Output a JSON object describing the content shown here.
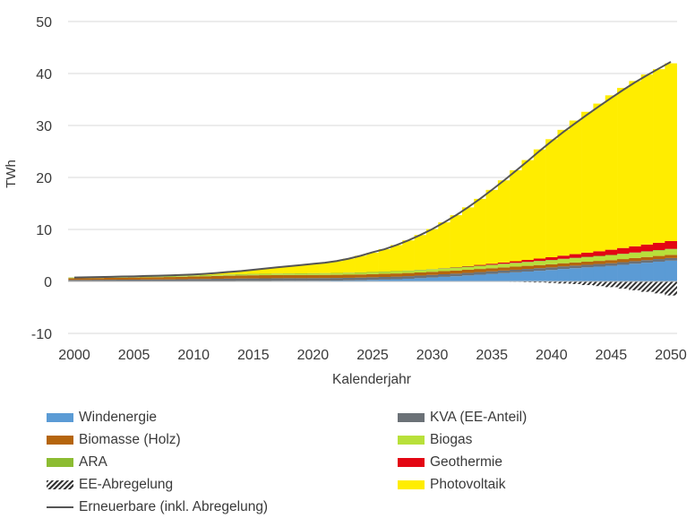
{
  "chart_data": {
    "type": "bar",
    "stacked": true,
    "xlabel": "Kalenderjahr",
    "ylabel": "TWh",
    "ylim": [
      -10,
      50
    ],
    "yticks": [
      -10,
      0,
      10,
      20,
      30,
      40,
      50
    ],
    "xticks": [
      2000,
      2005,
      2010,
      2015,
      2020,
      2025,
      2030,
      2035,
      2040,
      2045,
      2050
    ],
    "grid": "horizontal",
    "legend_position": "bottom",
    "x": [
      2000,
      2001,
      2002,
      2003,
      2004,
      2005,
      2006,
      2007,
      2008,
      2009,
      2010,
      2011,
      2012,
      2013,
      2014,
      2015,
      2016,
      2017,
      2018,
      2019,
      2020,
      2021,
      2022,
      2023,
      2024,
      2025,
      2026,
      2027,
      2028,
      2029,
      2030,
      2031,
      2032,
      2033,
      2034,
      2035,
      2036,
      2037,
      2038,
      2039,
      2040,
      2041,
      2042,
      2043,
      2044,
      2045,
      2046,
      2047,
      2048,
      2049,
      2050
    ],
    "series": [
      {
        "name": "Windenergie",
        "color": "#5b9bd5",
        "values": [
          0,
          0,
          0,
          0,
          0,
          0,
          0,
          0,
          0,
          0.02,
          0.04,
          0.05,
          0.06,
          0.08,
          0.1,
          0.1,
          0.1,
          0.12,
          0.13,
          0.13,
          0.14,
          0.15,
          0.17,
          0.2,
          0.24,
          0.3,
          0.36,
          0.43,
          0.52,
          0.63,
          0.75,
          0.88,
          1.0,
          1.15,
          1.3,
          1.45,
          1.6,
          1.75,
          1.9,
          2.05,
          2.2,
          2.4,
          2.55,
          2.7,
          2.85,
          3.0,
          3.2,
          3.4,
          3.6,
          3.8,
          4.0
        ]
      },
      {
        "name": "KVA (EE-Anteil)",
        "color": "#6b7177",
        "values": [
          0.3,
          0.3,
          0.32,
          0.33,
          0.34,
          0.35,
          0.37,
          0.38,
          0.39,
          0.4,
          0.42,
          0.43,
          0.45,
          0.46,
          0.47,
          0.48,
          0.5,
          0.5,
          0.5,
          0.5,
          0.5,
          0.5,
          0.5,
          0.5,
          0.5,
          0.5,
          0.5,
          0.5,
          0.5,
          0.5,
          0.5,
          0.5,
          0.5,
          0.5,
          0.5,
          0.5,
          0.5,
          0.5,
          0.5,
          0.5,
          0.5,
          0.5,
          0.5,
          0.5,
          0.5,
          0.5,
          0.5,
          0.5,
          0.5,
          0.5,
          0.5
        ]
      },
      {
        "name": "Biomasse (Holz)",
        "color": "#b5650d",
        "values": [
          0.3,
          0.32,
          0.34,
          0.36,
          0.38,
          0.4,
          0.42,
          0.44,
          0.46,
          0.48,
          0.5,
          0.52,
          0.54,
          0.56,
          0.58,
          0.6,
          0.6,
          0.6,
          0.6,
          0.6,
          0.6,
          0.6,
          0.6,
          0.6,
          0.6,
          0.6,
          0.6,
          0.6,
          0.6,
          0.6,
          0.6,
          0.6,
          0.6,
          0.6,
          0.6,
          0.6,
          0.6,
          0.6,
          0.6,
          0.6,
          0.6,
          0.6,
          0.6,
          0.6,
          0.6,
          0.6,
          0.6,
          0.6,
          0.6,
          0.6,
          0.6
        ]
      },
      {
        "name": "Biogas",
        "color": "#b8e03a",
        "values": [
          0.05,
          0.05,
          0.06,
          0.06,
          0.07,
          0.07,
          0.08,
          0.08,
          0.09,
          0.1,
          0.1,
          0.12,
          0.13,
          0.14,
          0.15,
          0.17,
          0.18,
          0.2,
          0.21,
          0.22,
          0.24,
          0.25,
          0.26,
          0.28,
          0.3,
          0.32,
          0.34,
          0.36,
          0.38,
          0.4,
          0.42,
          0.45,
          0.48,
          0.5,
          0.53,
          0.56,
          0.6,
          0.63,
          0.66,
          0.7,
          0.73,
          0.76,
          0.8,
          0.83,
          0.86,
          0.9,
          0.93,
          0.96,
          1.0,
          1.03,
          1.06
        ]
      },
      {
        "name": "ARA",
        "color": "#8cbc32",
        "values": [
          0.1,
          0.1,
          0.1,
          0.1,
          0.1,
          0.1,
          0.1,
          0.1,
          0.1,
          0.1,
          0.1,
          0.1,
          0.1,
          0.1,
          0.1,
          0.1,
          0.1,
          0.1,
          0.1,
          0.1,
          0.1,
          0.1,
          0.1,
          0.1,
          0.1,
          0.1,
          0.1,
          0.1,
          0.1,
          0.1,
          0.1,
          0.1,
          0.1,
          0.1,
          0.1,
          0.1,
          0.1,
          0.1,
          0.1,
          0.1,
          0.1,
          0.1,
          0.1,
          0.1,
          0.1,
          0.1,
          0.1,
          0.1,
          0.1,
          0.1,
          0.1
        ]
      },
      {
        "name": "Geothermie",
        "color": "#e30613",
        "values": [
          0,
          0,
          0,
          0,
          0,
          0,
          0,
          0,
          0,
          0,
          0,
          0,
          0,
          0,
          0,
          0,
          0,
          0,
          0,
          0,
          0,
          0,
          0,
          0,
          0,
          0,
          0,
          0,
          0,
          0,
          0,
          0.03,
          0.06,
          0.1,
          0.15,
          0.2,
          0.25,
          0.3,
          0.38,
          0.45,
          0.53,
          0.6,
          0.7,
          0.8,
          0.9,
          1.0,
          1.1,
          1.2,
          1.3,
          1.4,
          1.5
        ]
      },
      {
        "name": "Photovoltaik",
        "color": "#ffed00",
        "values": [
          0.01,
          0.02,
          0.03,
          0.04,
          0.05,
          0.06,
          0.08,
          0.1,
          0.12,
          0.14,
          0.18,
          0.25,
          0.35,
          0.5,
          0.6,
          0.8,
          1.0,
          1.2,
          1.4,
          1.6,
          1.8,
          2.0,
          2.3,
          2.7,
          3.2,
          3.7,
          4.3,
          5.0,
          5.8,
          6.7,
          7.7,
          8.8,
          10.0,
          11.3,
          12.7,
          14.2,
          15.8,
          17.5,
          19.2,
          21.0,
          22.7,
          24.2,
          25.7,
          27.1,
          28.4,
          29.7,
          30.8,
          31.8,
          32.7,
          33.4,
          34.2
        ]
      },
      {
        "name": "EE-Abregelung",
        "color": "#333333",
        "pattern": "hatch",
        "values": [
          0,
          0,
          0,
          0,
          0,
          0,
          0,
          0,
          0,
          0,
          0,
          0,
          0,
          0,
          0,
          0,
          0,
          0,
          0,
          0,
          0,
          0,
          0,
          0,
          0,
          0,
          0,
          0,
          0,
          0,
          0,
          0,
          0,
          0,
          0,
          0,
          -0.05,
          -0.1,
          -0.15,
          -0.2,
          -0.3,
          -0.4,
          -0.5,
          -0.7,
          -0.9,
          -1.1,
          -1.4,
          -1.7,
          -2.0,
          -2.3,
          -2.7
        ]
      }
    ],
    "line": {
      "name": "Erneuerbare (inkl. Abregelung)",
      "color": "#555555",
      "values": [
        0.76,
        0.79,
        0.85,
        0.89,
        0.94,
        0.98,
        1.05,
        1.1,
        1.16,
        1.24,
        1.34,
        1.47,
        1.63,
        1.84,
        2.0,
        2.25,
        2.48,
        2.72,
        2.94,
        3.15,
        3.38,
        3.6,
        3.93,
        4.38,
        4.94,
        5.62,
        6.2,
        6.99,
        7.9,
        8.93,
        10.07,
        11.36,
        12.74,
        14.25,
        15.88,
        17.61,
        19.4,
        21.26,
        23.14,
        25.1,
        26.96,
        28.76,
        30.45,
        32.1,
        33.71,
        35.3,
        36.83,
        38.3,
        39.65,
        40.96,
        42.24
      ]
    }
  },
  "legend": {
    "items": [
      {
        "label": "Windenergie"
      },
      {
        "label": "KVA (EE-Anteil)"
      },
      {
        "label": "Biomasse (Holz)"
      },
      {
        "label": "Biogas"
      },
      {
        "label": "ARA"
      },
      {
        "label": "Geothermie"
      },
      {
        "label": "EE-Abregelung"
      },
      {
        "label": "Photovoltaik"
      },
      {
        "label": "Erneuerbare (inkl. Abregelung)"
      }
    ]
  }
}
